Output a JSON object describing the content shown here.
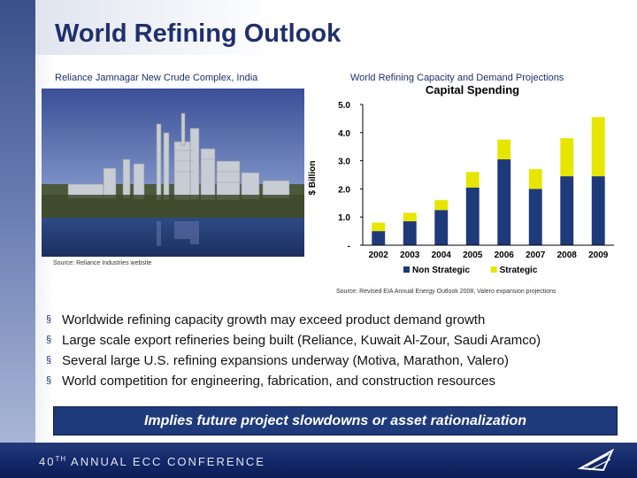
{
  "slide": {
    "title": "World Refining Outlook",
    "photo_caption": "Reliance Jamnagar New Crude Complex, India",
    "photo_source": "Source: Reliance Industries website",
    "chart_caption": "World Refining Capacity and Demand Projections",
    "chart_source": "Source: Revised EIA Annual Energy Outlook 2008, Valero expansion projections",
    "bullets": [
      "Worldwide refining capacity growth may exceed product demand growth",
      "Large scale export refineries being built (Reliance, Kuwait Al-Zour, Saudi Aramco)",
      "Several large U.S. refining expansions underway (Motiva, Marathon, Valero)",
      "World competition for engineering, fabrication, and construction resources"
    ],
    "bullet_glyph": "§",
    "banner": "Implies future project slowdowns or asset rationalization",
    "footer_prefix": "40",
    "footer_ordinal": "TH",
    "footer_suffix": " ANNUAL ECC CONFERENCE"
  },
  "colors": {
    "non_strategic": "#1f3a7a",
    "strategic": "#e6e600",
    "title": "#1f2f6b"
  },
  "chart_data": {
    "type": "bar",
    "stacked": true,
    "title": "Capital Spending",
    "ylabel": "$ Billion",
    "xlabel": "",
    "ylim": [
      0,
      5.0
    ],
    "y_ticks": [
      "-",
      "1.0",
      "2.0",
      "3.0",
      "4.0",
      "5.0"
    ],
    "categories": [
      "2002",
      "2003",
      "2004",
      "2005",
      "2006",
      "2007",
      "2008",
      "2009"
    ],
    "series": [
      {
        "name": "Non Strategic",
        "values": [
          0.5,
          0.85,
          1.25,
          2.05,
          3.05,
          2.0,
          2.45,
          2.45
        ]
      },
      {
        "name": "Strategic",
        "values": [
          0.3,
          0.3,
          0.35,
          0.55,
          0.7,
          0.7,
          1.35,
          2.1
        ]
      }
    ],
    "legend": "bottom",
    "grid": false
  }
}
